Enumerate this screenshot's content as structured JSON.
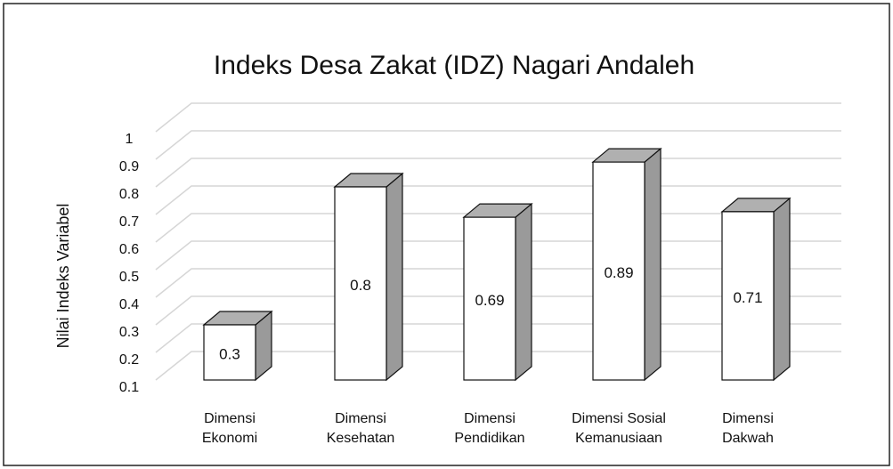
{
  "chart_data": {
    "type": "bar3d",
    "title": "Indeks Desa Zakat (IDZ) Nagari Andaleh",
    "y_label": "Nilai Indeks Variabel",
    "categories": [
      "Dimensi Ekonomi",
      "Dimensi Kesehatan",
      "Dimensi Pendidikan",
      "Dimensi Sosial Kemanusiaan",
      "Dimensi Dakwah"
    ],
    "values": [
      0.3,
      0.8,
      0.69,
      0.89,
      0.71
    ],
    "color": "#ffffff",
    "side_color": "#9a9a9a",
    "top_color": "#b0b0b0",
    "ylim": [
      0.1,
      1
    ],
    "yticks": [
      0.1,
      0.2,
      0.3,
      0.4,
      0.5,
      0.6,
      0.7,
      0.8,
      0.9,
      1
    ],
    "grid": true
  }
}
